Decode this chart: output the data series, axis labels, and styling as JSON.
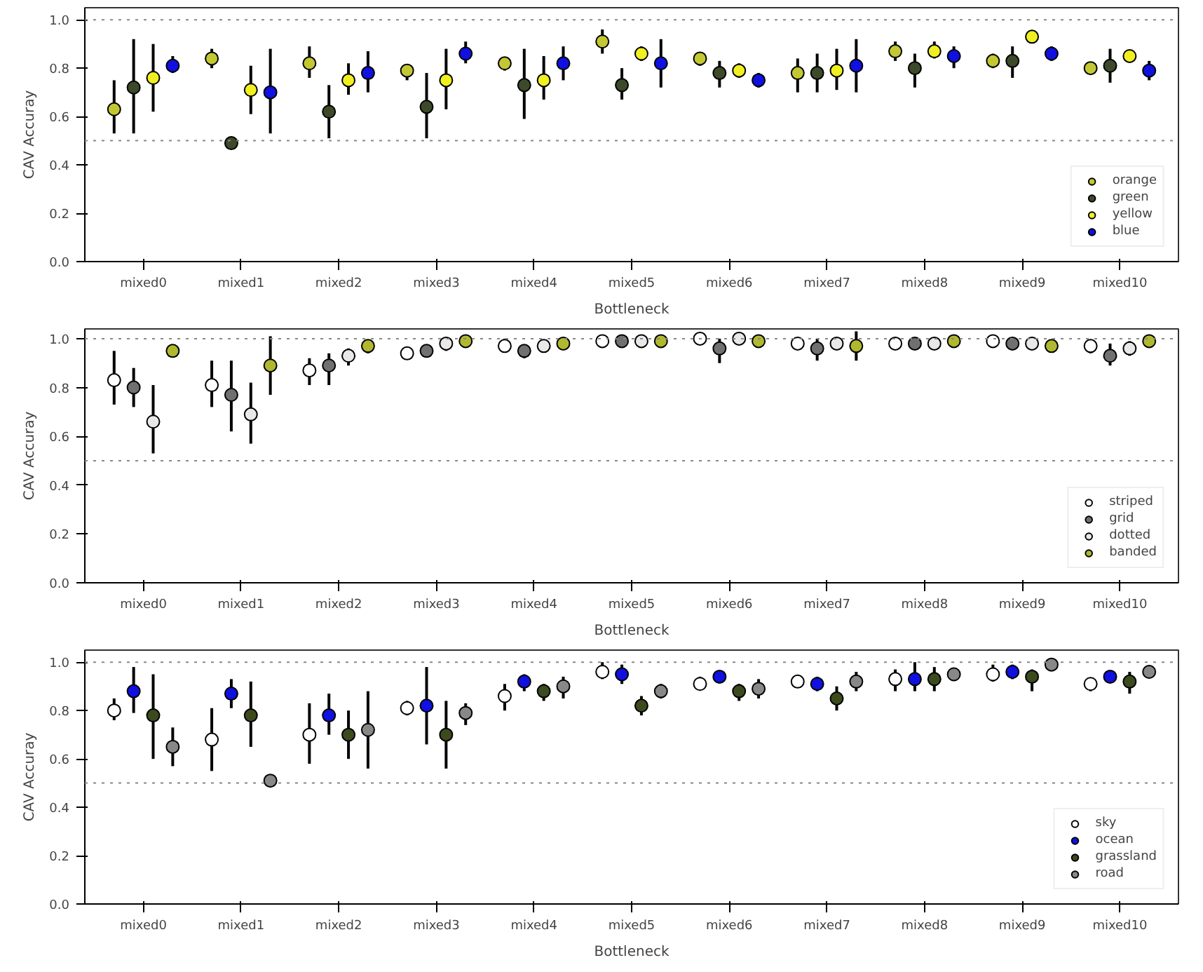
{
  "chart_data": [
    {
      "type": "scatter",
      "xlabel": "Bottleneck",
      "ylabel": "CAV Accuray",
      "categories": [
        "mixed0",
        "mixed1",
        "mixed2",
        "mixed3",
        "mixed4",
        "mixed5",
        "mixed6",
        "mixed7",
        "mixed8",
        "mixed9",
        "mixed10"
      ],
      "ylim": [
        0,
        1.05
      ],
      "yticks": [
        {
          "value": 0,
          "label": "0.0"
        },
        {
          "value": 0.2,
          "label": "0.2"
        },
        {
          "value": 0.4,
          "label": "0.4"
        },
        {
          "value": 0.6,
          "label": "0.6"
        },
        {
          "value": 0.8,
          "label": "0.8"
        },
        {
          "value": 1,
          "label": "1.0"
        }
      ],
      "grid": false,
      "legend": "bottom right",
      "marker": "circle",
      "ref_lines": [
        {
          "axis": "y",
          "value": 1.0,
          "color": "#888888",
          "line_style": "dotted"
        },
        {
          "axis": "y",
          "value": 0.5,
          "color": "#888888",
          "line_style": "dotted"
        }
      ],
      "series": [
        {
          "name": "orange",
          "color": "#c3c832",
          "values": [
            0.63,
            0.84,
            0.82,
            0.79,
            0.82,
            0.91,
            0.84,
            0.78,
            0.87,
            0.83,
            0.8
          ],
          "errors": [
            [
              0.53,
              0.75
            ],
            [
              0.8,
              0.88
            ],
            [
              0.76,
              0.89
            ],
            [
              0.75,
              0.81
            ],
            [
              0.79,
              0.84
            ],
            [
              0.86,
              0.96
            ],
            [
              0.81,
              0.86
            ],
            [
              0.7,
              0.84
            ],
            [
              0.83,
              0.91
            ],
            [
              0.8,
              0.86
            ],
            null
          ]
        },
        {
          "name": "green",
          "color": "#3c4a2a",
          "values": [
            0.72,
            0.49,
            0.62,
            0.64,
            0.73,
            0.73,
            0.78,
            0.78,
            0.8,
            0.83,
            0.81
          ],
          "errors": [
            [
              0.53,
              0.92
            ],
            null,
            [
              0.51,
              0.73
            ],
            [
              0.51,
              0.78
            ],
            [
              0.59,
              0.88
            ],
            [
              0.67,
              0.8
            ],
            [
              0.72,
              0.83
            ],
            [
              0.7,
              0.86
            ],
            [
              0.72,
              0.86
            ],
            [
              0.76,
              0.89
            ],
            [
              0.74,
              0.88
            ]
          ]
        },
        {
          "name": "yellow",
          "color": "#f0f020",
          "values": [
            0.76,
            0.71,
            0.75,
            0.75,
            0.75,
            0.86,
            0.79,
            0.79,
            0.87,
            0.93,
            0.85
          ],
          "errors": [
            [
              0.62,
              0.9
            ],
            [
              0.61,
              0.81
            ],
            [
              0.69,
              0.82
            ],
            [
              0.63,
              0.88
            ],
            [
              0.67,
              0.85
            ],
            [
              0.83,
              0.89
            ],
            [
              0.76,
              0.82
            ],
            [
              0.71,
              0.88
            ],
            [
              0.84,
              0.91
            ],
            null,
            null
          ]
        },
        {
          "name": "blue",
          "color": "#1010e0",
          "values": [
            0.81,
            0.7,
            0.78,
            0.86,
            0.82,
            0.82,
            0.75,
            0.81,
            0.85,
            0.86,
            0.79
          ],
          "errors": [
            [
              0.78,
              0.85
            ],
            [
              0.53,
              0.88
            ],
            [
              0.7,
              0.87
            ],
            [
              0.82,
              0.91
            ],
            [
              0.75,
              0.89
            ],
            [
              0.72,
              0.92
            ],
            [
              0.72,
              0.78
            ],
            [
              0.7,
              0.92
            ],
            [
              0.8,
              0.89
            ],
            [
              0.83,
              0.89
            ],
            [
              0.75,
              0.83
            ]
          ]
        }
      ]
    },
    {
      "type": "scatter",
      "xlabel": "Bottleneck",
      "ylabel": "CAV Accuray",
      "categories": [
        "mixed0",
        "mixed1",
        "mixed2",
        "mixed3",
        "mixed4",
        "mixed5",
        "mixed6",
        "mixed7",
        "mixed8",
        "mixed9",
        "mixed10"
      ],
      "ylim": [
        0,
        1.04
      ],
      "yticks": [
        {
          "value": 0,
          "label": "0.0"
        },
        {
          "value": 0.2,
          "label": "0.2"
        },
        {
          "value": 0.4,
          "label": "0.4"
        },
        {
          "value": 0.6,
          "label": "0.6"
        },
        {
          "value": 0.8,
          "label": "0.8"
        },
        {
          "value": 1,
          "label": "1.0"
        }
      ],
      "grid": false,
      "legend": "bottom right",
      "marker": "circle",
      "ref_lines": [
        {
          "axis": "y",
          "value": 1.0,
          "color": "#888888",
          "line_style": "dotted"
        },
        {
          "axis": "y",
          "value": 0.5,
          "color": "#888888",
          "line_style": "dotted"
        }
      ],
      "series": [
        {
          "name": "striped",
          "color": "#ffffff",
          "values": [
            0.83,
            0.81,
            0.87,
            0.94,
            0.97,
            0.99,
            1.0,
            0.98,
            0.98,
            0.99,
            0.97
          ],
          "errors": [
            [
              0.73,
              0.95
            ],
            [
              0.72,
              0.91
            ],
            [
              0.81,
              0.92
            ],
            null,
            [
              0.95,
              1.0
            ],
            null,
            null,
            null,
            null,
            null,
            [
              0.94,
              0.99
            ]
          ]
        },
        {
          "name": "grid",
          "color": "#707070",
          "values": [
            0.8,
            0.77,
            0.89,
            0.95,
            0.95,
            0.99,
            0.96,
            0.96,
            0.98,
            0.98,
            0.93
          ],
          "errors": [
            [
              0.72,
              0.88
            ],
            [
              0.62,
              0.91
            ],
            [
              0.81,
              0.94
            ],
            null,
            [
              0.92,
              0.97
            ],
            null,
            [
              0.9,
              1.0
            ],
            [
              0.91,
              1.0
            ],
            null,
            null,
            [
              0.89,
              0.98
            ]
          ]
        },
        {
          "name": "dotted",
          "color": "#e8e8e8",
          "values": [
            0.66,
            0.69,
            0.93,
            0.98,
            0.97,
            0.99,
            1.0,
            0.98,
            0.98,
            0.98,
            0.96
          ],
          "errors": [
            [
              0.53,
              0.81
            ],
            [
              0.57,
              0.82
            ],
            [
              0.89,
              0.96
            ],
            [
              0.95,
              1.0
            ],
            null,
            null,
            null,
            null,
            null,
            null,
            [
              0.93,
              0.99
            ]
          ]
        },
        {
          "name": "banded",
          "color": "#b0b830",
          "values": [
            0.95,
            0.89,
            0.97,
            0.99,
            0.98,
            0.99,
            0.99,
            0.97,
            0.99,
            0.97,
            0.99
          ],
          "errors": [
            null,
            [
              0.77,
              1.01
            ],
            [
              0.94,
              0.99
            ],
            null,
            null,
            null,
            null,
            [
              0.91,
              1.03
            ],
            null,
            null,
            null
          ]
        }
      ]
    },
    {
      "type": "scatter",
      "xlabel": "Bottleneck",
      "ylabel": "CAV Accuray",
      "categories": [
        "mixed0",
        "mixed1",
        "mixed2",
        "mixed3",
        "mixed4",
        "mixed5",
        "mixed6",
        "mixed7",
        "mixed8",
        "mixed9",
        "mixed10"
      ],
      "ylim": [
        0,
        1.05
      ],
      "yticks": [
        {
          "value": 0,
          "label": "0.0"
        },
        {
          "value": 0.2,
          "label": "0.2"
        },
        {
          "value": 0.4,
          "label": "0.4"
        },
        {
          "value": 0.6,
          "label": "0.6"
        },
        {
          "value": 0.8,
          "label": "0.8"
        },
        {
          "value": 1,
          "label": "1.0"
        }
      ],
      "grid": false,
      "legend": "bottom right",
      "marker": "circle",
      "ref_lines": [
        {
          "axis": "y",
          "value": 1.0,
          "color": "#888888",
          "line_style": "dotted"
        },
        {
          "axis": "y",
          "value": 0.5,
          "color": "#888888",
          "line_style": "dotted"
        }
      ],
      "series": [
        {
          "name": "sky",
          "color": "#ffffff",
          "values": [
            0.8,
            0.68,
            0.7,
            0.81,
            0.86,
            0.96,
            0.91,
            0.92,
            0.93,
            0.95,
            0.91
          ],
          "errors": [
            [
              0.76,
              0.85
            ],
            [
              0.55,
              0.81
            ],
            [
              0.58,
              0.83
            ],
            [
              0.78,
              0.84
            ],
            [
              0.8,
              0.91
            ],
            [
              0.93,
              1.0
            ],
            [
              0.89,
              0.94
            ],
            null,
            [
              0.88,
              0.97
            ],
            [
              0.92,
              0.99
            ],
            [
              0.88,
              0.93
            ]
          ]
        },
        {
          "name": "ocean",
          "color": "#1010e0",
          "values": [
            0.88,
            0.87,
            0.78,
            0.82,
            0.92,
            0.95,
            0.94,
            0.91,
            0.93,
            0.96,
            0.94
          ],
          "errors": [
            [
              0.79,
              0.98
            ],
            [
              0.81,
              0.93
            ],
            [
              0.7,
              0.87
            ],
            [
              0.66,
              0.98
            ],
            [
              0.88,
              0.95
            ],
            [
              0.91,
              0.99
            ],
            null,
            [
              0.88,
              0.94
            ],
            [
              0.88,
              1.0
            ],
            [
              0.93,
              0.99
            ],
            null
          ]
        },
        {
          "name": "grassland",
          "color": "#3c4a1e",
          "values": [
            0.78,
            0.78,
            0.7,
            0.7,
            0.88,
            0.82,
            0.88,
            0.85,
            0.93,
            0.94,
            0.92
          ],
          "errors": [
            [
              0.6,
              0.95
            ],
            [
              0.65,
              0.92
            ],
            [
              0.6,
              0.8
            ],
            [
              0.56,
              0.84
            ],
            [
              0.84,
              0.91
            ],
            [
              0.78,
              0.86
            ],
            [
              0.84,
              0.91
            ],
            [
              0.8,
              0.9
            ],
            [
              0.88,
              0.98
            ],
            [
              0.88,
              0.97
            ],
            [
              0.87,
              0.96
            ]
          ]
        },
        {
          "name": "road",
          "color": "#888888",
          "values": [
            0.65,
            0.51,
            0.72,
            0.79,
            0.9,
            0.88,
            0.89,
            0.92,
            0.95,
            0.99,
            0.96
          ],
          "errors": [
            [
              0.57,
              0.73
            ],
            null,
            [
              0.56,
              0.88
            ],
            [
              0.74,
              0.83
            ],
            [
              0.85,
              0.94
            ],
            [
              0.85,
              0.91
            ],
            [
              0.85,
              0.93
            ],
            [
              0.88,
              0.96
            ],
            null,
            null,
            null
          ]
        }
      ]
    }
  ]
}
